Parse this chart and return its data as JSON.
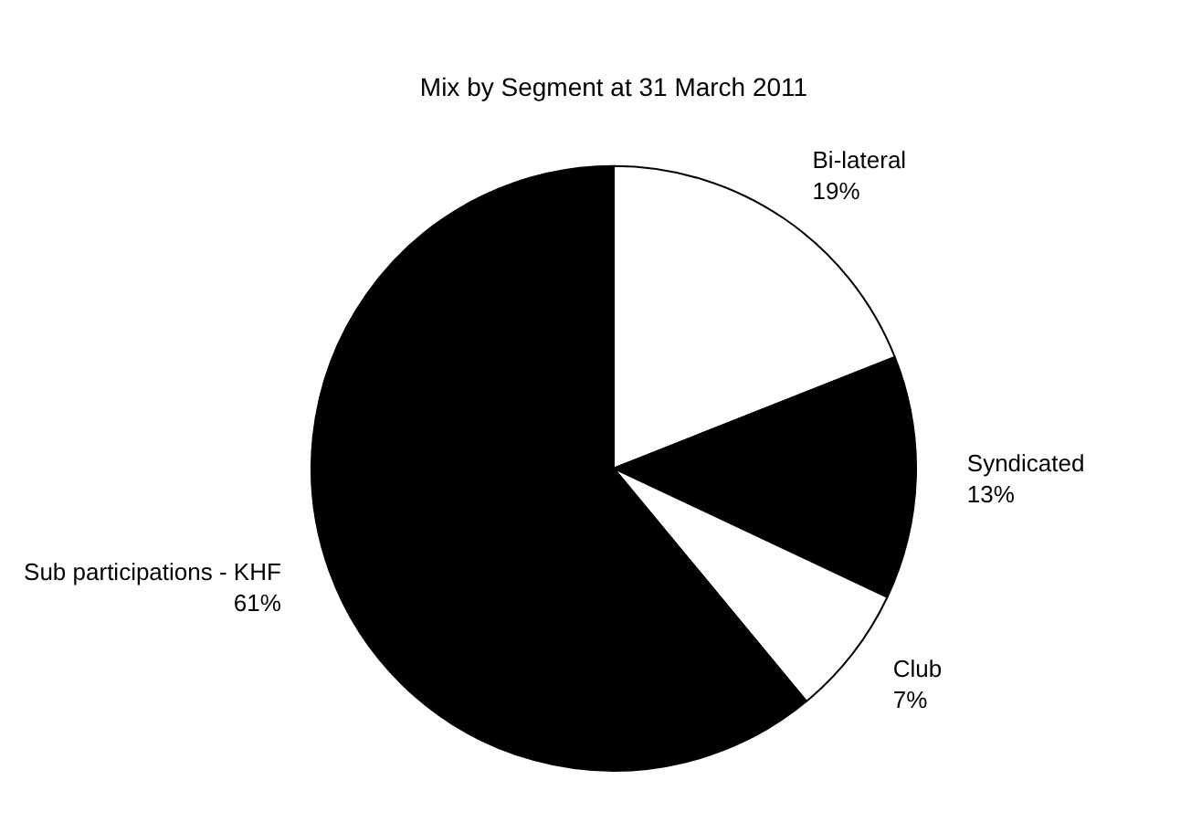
{
  "chart_data": {
    "type": "pie",
    "title": "Mix by Segment at 31 March 2011",
    "categories": [
      "Bi-lateral",
      "Syndicated",
      "Club",
      "Sub participations - KHF"
    ],
    "values": [
      19,
      13,
      7,
      61
    ],
    "colors": [
      "#ffffff",
      "#000000",
      "#ffffff",
      "#000000"
    ],
    "value_labels": [
      "19%",
      "13%",
      "7%",
      "61%"
    ],
    "legend": false
  }
}
